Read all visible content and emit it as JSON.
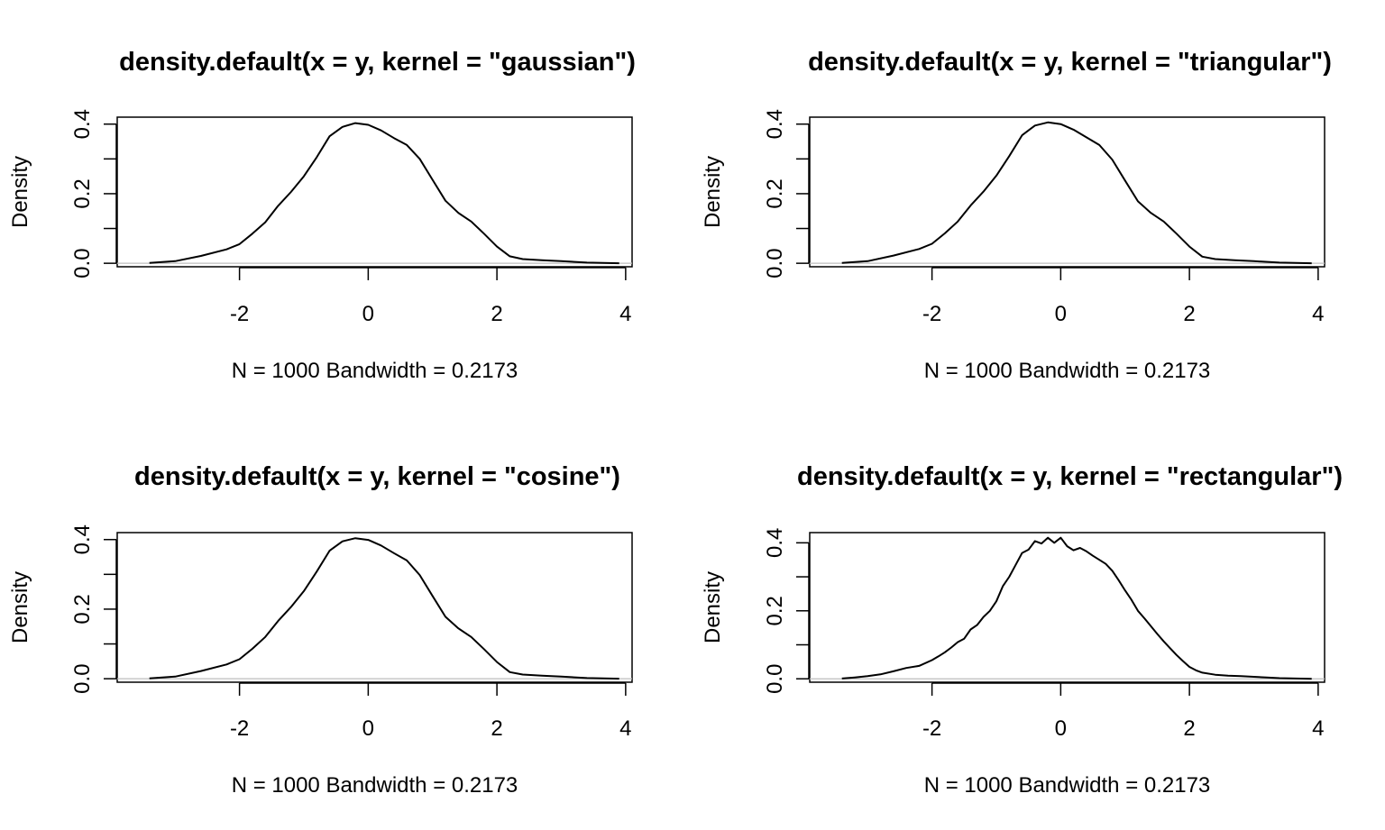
{
  "figure": {
    "layout": "2x2"
  },
  "chart_data": [
    {
      "type": "line",
      "kernel": "gaussian",
      "title": "density.default(x = y, kernel = \"gaussian\")",
      "xlabel": "N = 1000   Bandwidth = 0.2173",
      "ylabel": "Density",
      "x_ticks": [
        "-2",
        "0",
        "2",
        "4"
      ],
      "y_ticks": [
        "0.0",
        "0.2",
        "0.4"
      ],
      "xlim": [
        -3.9,
        4.1
      ],
      "ylim": [
        -0.01,
        0.42
      ],
      "grid": false,
      "series": [
        {
          "x": [
            -3.4,
            -3.0,
            -2.6,
            -2.2,
            -2.0,
            -1.8,
            -1.6,
            -1.4,
            -1.2,
            -1.0,
            -0.8,
            -0.6,
            -0.4,
            -0.2,
            0.0,
            0.2,
            0.4,
            0.6,
            0.8,
            1.0,
            1.2,
            1.4,
            1.6,
            1.8,
            2.0,
            2.2,
            2.4,
            2.7,
            3.0,
            3.4,
            3.9
          ],
          "y": [
            0.001,
            0.006,
            0.021,
            0.04,
            0.055,
            0.085,
            0.118,
            0.165,
            0.205,
            0.25,
            0.305,
            0.365,
            0.392,
            0.403,
            0.398,
            0.382,
            0.36,
            0.34,
            0.3,
            0.24,
            0.18,
            0.145,
            0.12,
            0.085,
            0.048,
            0.02,
            0.012,
            0.009,
            0.006,
            0.002,
            0.0
          ]
        }
      ]
    },
    {
      "type": "line",
      "kernel": "triangular",
      "title": "density.default(x = y, kernel = \"triangular\")",
      "xlabel": "N = 1000   Bandwidth = 0.2173",
      "ylabel": "Density",
      "x_ticks": [
        "-2",
        "0",
        "2",
        "4"
      ],
      "y_ticks": [
        "0.0",
        "0.2",
        "0.4"
      ],
      "xlim": [
        -3.9,
        4.1
      ],
      "ylim": [
        -0.01,
        0.42
      ],
      "grid": false,
      "series": [
        {
          "x": [
            -3.4,
            -3.0,
            -2.6,
            -2.2,
            -2.0,
            -1.8,
            -1.6,
            -1.4,
            -1.2,
            -1.0,
            -0.8,
            -0.6,
            -0.4,
            -0.2,
            0.0,
            0.2,
            0.4,
            0.6,
            0.8,
            1.0,
            1.2,
            1.4,
            1.6,
            1.8,
            2.0,
            2.2,
            2.4,
            2.7,
            3.0,
            3.4,
            3.9
          ],
          "y": [
            0.001,
            0.006,
            0.022,
            0.041,
            0.056,
            0.086,
            0.12,
            0.166,
            0.206,
            0.252,
            0.308,
            0.368,
            0.396,
            0.405,
            0.4,
            0.384,
            0.362,
            0.34,
            0.298,
            0.238,
            0.178,
            0.145,
            0.12,
            0.085,
            0.048,
            0.019,
            0.012,
            0.009,
            0.006,
            0.002,
            0.0
          ]
        }
      ]
    },
    {
      "type": "line",
      "kernel": "cosine",
      "title": "density.default(x = y, kernel = \"cosine\")",
      "xlabel": "N = 1000   Bandwidth = 0.2173",
      "ylabel": "Density",
      "x_ticks": [
        "-2",
        "0",
        "2",
        "4"
      ],
      "y_ticks": [
        "0.0",
        "0.2",
        "0.4"
      ],
      "xlim": [
        -3.9,
        4.1
      ],
      "ylim": [
        -0.01,
        0.42
      ],
      "grid": false,
      "series": [
        {
          "x": [
            -3.4,
            -3.0,
            -2.6,
            -2.2,
            -2.0,
            -1.8,
            -1.6,
            -1.4,
            -1.2,
            -1.0,
            -0.8,
            -0.6,
            -0.4,
            -0.2,
            0.0,
            0.2,
            0.4,
            0.6,
            0.8,
            1.0,
            1.2,
            1.4,
            1.6,
            1.8,
            2.0,
            2.2,
            2.4,
            2.7,
            3.0,
            3.4,
            3.9
          ],
          "y": [
            0.001,
            0.006,
            0.022,
            0.041,
            0.056,
            0.086,
            0.12,
            0.166,
            0.206,
            0.252,
            0.308,
            0.368,
            0.395,
            0.404,
            0.399,
            0.383,
            0.361,
            0.34,
            0.298,
            0.238,
            0.178,
            0.145,
            0.12,
            0.085,
            0.048,
            0.019,
            0.012,
            0.009,
            0.006,
            0.002,
            0.0
          ]
        }
      ]
    },
    {
      "type": "line",
      "kernel": "rectangular",
      "title": "density.default(x = y, kernel = \"rectangular\")",
      "xlabel": "N = 1000   Bandwidth = 0.2173",
      "ylabel": "Density",
      "x_ticks": [
        "-2",
        "0",
        "2",
        "4"
      ],
      "y_ticks": [
        "0.0",
        "0.2",
        "0.4"
      ],
      "xlim": [
        -3.9,
        4.1
      ],
      "ylim": [
        -0.01,
        0.43
      ],
      "grid": false,
      "series": [
        {
          "x": [
            -3.4,
            -3.2,
            -3.0,
            -2.8,
            -2.6,
            -2.4,
            -2.2,
            -2.0,
            -1.9,
            -1.8,
            -1.7,
            -1.6,
            -1.5,
            -1.4,
            -1.3,
            -1.2,
            -1.1,
            -1.0,
            -0.9,
            -0.8,
            -0.7,
            -0.6,
            -0.5,
            -0.4,
            -0.3,
            -0.2,
            -0.1,
            0.0,
            0.1,
            0.2,
            0.3,
            0.4,
            0.5,
            0.6,
            0.7,
            0.8,
            0.9,
            1.0,
            1.1,
            1.2,
            1.3,
            1.4,
            1.5,
            1.6,
            1.7,
            1.8,
            1.9,
            2.0,
            2.1,
            2.2,
            2.4,
            2.6,
            2.8,
            3.0,
            3.2,
            3.4,
            3.9
          ],
          "y": [
            0.001,
            0.004,
            0.008,
            0.013,
            0.022,
            0.032,
            0.038,
            0.055,
            0.066,
            0.078,
            0.092,
            0.108,
            0.118,
            0.145,
            0.158,
            0.182,
            0.2,
            0.228,
            0.272,
            0.3,
            0.335,
            0.37,
            0.38,
            0.405,
            0.398,
            0.415,
            0.4,
            0.415,
            0.39,
            0.378,
            0.385,
            0.375,
            0.362,
            0.35,
            0.338,
            0.318,
            0.29,
            0.26,
            0.232,
            0.2,
            0.178,
            0.155,
            0.132,
            0.11,
            0.09,
            0.07,
            0.052,
            0.035,
            0.025,
            0.018,
            0.012,
            0.009,
            0.008,
            0.006,
            0.004,
            0.002,
            0.0
          ]
        }
      ]
    }
  ]
}
